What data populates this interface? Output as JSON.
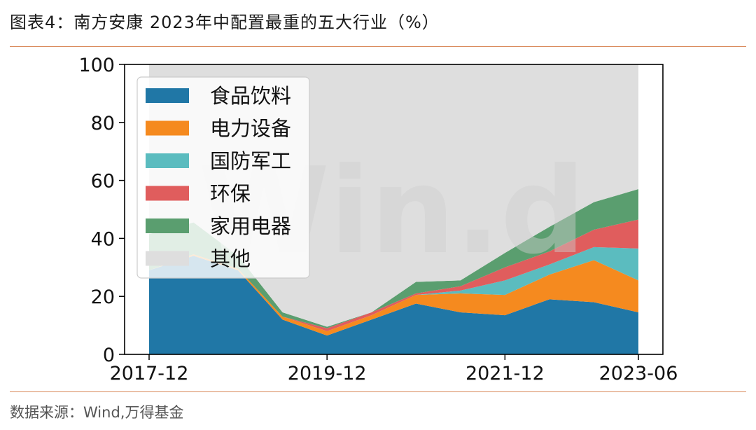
{
  "header": {
    "title": "图表4：南方安康 2023年中配置最重的五大行业（%）"
  },
  "footer": {
    "source": "数据来源：Wind,万得基金"
  },
  "watermark": "Win.d",
  "chart_data": {
    "type": "area",
    "stacked": true,
    "x": [
      "2017-12",
      "2018-06",
      "2018-12",
      "2019-06",
      "2019-12",
      "2020-06",
      "2020-12",
      "2021-06",
      "2021-12",
      "2022-06",
      "2022-12",
      "2023-06"
    ],
    "x_tick_labels": [
      "2017-12",
      "2019-12",
      "2021-12",
      "2023-06"
    ],
    "ylim": [
      0,
      100
    ],
    "y_ticks": [
      0,
      20,
      40,
      60,
      80,
      100
    ],
    "grid": false,
    "legend_position": "upper-left",
    "series": [
      {
        "name": "食品饮料",
        "color": "#2077a6",
        "values": [
          29,
          34,
          29,
          12,
          6.5,
          12,
          17.5,
          14.5,
          13.5,
          19,
          18,
          14.5
        ]
      },
      {
        "name": "电力设备",
        "color": "#f58a1f",
        "values": [
          0,
          0.5,
          0.5,
          1,
          1.5,
          1.5,
          3,
          6.5,
          7,
          8.5,
          14.5,
          11
        ]
      },
      {
        "name": "国防军工",
        "color": "#5bbcbf",
        "values": [
          0,
          0,
          0,
          0,
          0,
          0,
          0,
          1,
          5,
          3.5,
          4.5,
          11
        ]
      },
      {
        "name": "环保",
        "color": "#e05d5d",
        "values": [
          0,
          0,
          0,
          0,
          1,
          1,
          0.5,
          1.5,
          4.5,
          4.5,
          6,
          10
        ]
      },
      {
        "name": "家用电器",
        "color": "#5a9e6f",
        "values": [
          12.5,
          11,
          4.5,
          1.5,
          0.5,
          0,
          4,
          2,
          5,
          8.5,
          9.5,
          10.5
        ]
      },
      {
        "name": "其他",
        "color": "#dedede",
        "values": [
          58.5,
          54.5,
          66,
          85.5,
          90.5,
          85.5,
          75,
          74.5,
          65,
          56,
          47.5,
          43
        ]
      }
    ]
  }
}
